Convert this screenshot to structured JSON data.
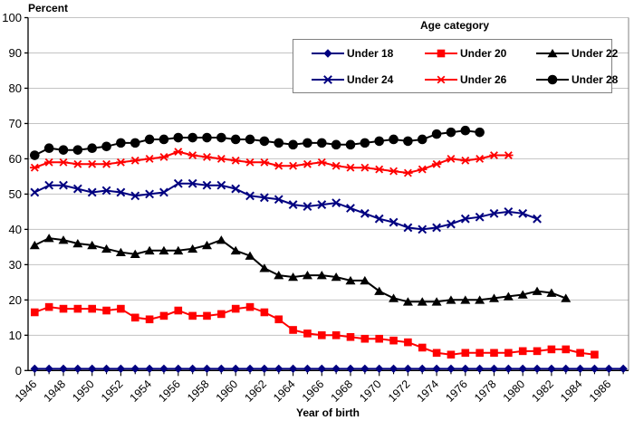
{
  "chart": {
    "y_axis_title": "Percent",
    "x_axis_title": "Year of birth",
    "legend_title": "Age category"
  },
  "colors": {
    "grid": "#c3c3c3",
    "plot_border": "#808080",
    "axis": "#000000",
    "navy": "#000080",
    "red": "#ff0000",
    "black": "#000000"
  },
  "chart_data": {
    "type": "line",
    "title": "",
    "ylabel": "Percent",
    "xlabel": "Year of birth",
    "legend_title": "Age category",
    "legend_position": "top-right-inside",
    "grid": true,
    "ylim": [
      0,
      100
    ],
    "y_ticks": [
      0,
      10,
      20,
      30,
      40,
      50,
      60,
      70,
      80,
      90,
      100
    ],
    "x_first_year": 1946,
    "x_last_tick_year": 1987,
    "x_tick_labels": [
      "1946",
      "1948",
      "1950",
      "1952",
      "1954",
      "1956",
      "1958",
      "1960",
      "1962",
      "1964",
      "1966",
      "1968",
      "1970",
      "1972",
      "1974",
      "1976",
      "1978",
      "1980",
      "1982",
      "1984",
      "1986"
    ],
    "series": [
      {
        "name": "Under 18",
        "color": "#000080",
        "marker": "diamond",
        "start_year": 1946,
        "values": [
          0.5,
          0.5,
          0.5,
          0.5,
          0.5,
          0.5,
          0.5,
          0.5,
          0.5,
          0.5,
          0.5,
          0.5,
          0.5,
          0.5,
          0.5,
          0.5,
          0.5,
          0.5,
          0.5,
          0.5,
          0.5,
          0.5,
          0.5,
          0.5,
          0.5,
          0.5,
          0.5,
          0.5,
          0.5,
          0.5,
          0.5,
          0.5,
          0.5,
          0.5,
          0.5,
          0.5,
          0.5,
          0.5,
          0.5,
          0.5,
          0.5,
          0.5
        ]
      },
      {
        "name": "Under 20",
        "color": "#ff0000",
        "marker": "square",
        "start_year": 1946,
        "values": [
          16.5,
          18,
          17.5,
          17.5,
          17.5,
          17,
          17.5,
          15,
          14.5,
          15.5,
          17,
          15.5,
          15.5,
          16,
          17.5,
          18,
          16.5,
          14.5,
          11.5,
          10.5,
          10,
          10,
          9.5,
          9,
          9,
          8.5,
          8,
          6.5,
          5,
          4.5,
          5,
          5,
          5,
          5,
          5.5,
          5.5,
          6,
          6,
          5,
          4.5
        ]
      },
      {
        "name": "Under 22",
        "color": "#000000",
        "marker": "triangle",
        "start_year": 1946,
        "values": [
          35.5,
          37.5,
          37,
          36,
          35.5,
          34.5,
          33.5,
          33,
          34,
          34,
          34,
          34.5,
          35.5,
          37,
          34,
          32.5,
          29,
          27,
          26.5,
          27,
          27,
          26.5,
          25.5,
          25.5,
          22.5,
          20.5,
          19.5,
          19.5,
          19.5,
          20,
          20,
          20,
          20.5,
          21,
          21.5,
          22.5,
          22,
          20.5
        ]
      },
      {
        "name": "Under 24",
        "color": "#000080",
        "marker": "x",
        "start_year": 1946,
        "values": [
          50.5,
          52.5,
          52.5,
          51.5,
          50.5,
          51,
          50.5,
          49.5,
          50,
          50.5,
          53,
          53,
          52.5,
          52.5,
          51.5,
          49.5,
          49,
          48.5,
          47,
          46.5,
          47,
          47.5,
          46,
          44.5,
          43,
          42,
          40.5,
          40,
          40.5,
          41.5,
          43,
          43.5,
          44.5,
          45,
          44.5,
          43
        ]
      },
      {
        "name": "Under 26",
        "color": "#ff0000",
        "marker": "asterisk",
        "start_year": 1946,
        "values": [
          57.5,
          59,
          59,
          58.5,
          58.5,
          58.5,
          59,
          59.5,
          60,
          60.5,
          62,
          61,
          60.5,
          60,
          59.5,
          59,
          59,
          58,
          58,
          58.5,
          59,
          58,
          57.5,
          57.5,
          57,
          56.5,
          56,
          57,
          58.5,
          60,
          59.5,
          60,
          61,
          61
        ]
      },
      {
        "name": "Under 28",
        "color": "#000000",
        "marker": "circle",
        "start_year": 1946,
        "values": [
          61,
          63,
          62.5,
          62.5,
          63,
          63.5,
          64.5,
          64.5,
          65.5,
          65.5,
          66,
          66,
          66,
          66,
          65.5,
          65.5,
          65,
          64.5,
          64,
          64.5,
          64.5,
          64,
          64,
          64.5,
          65,
          65.5,
          65,
          65.5,
          67,
          67.5,
          68,
          67.5
        ]
      }
    ]
  }
}
